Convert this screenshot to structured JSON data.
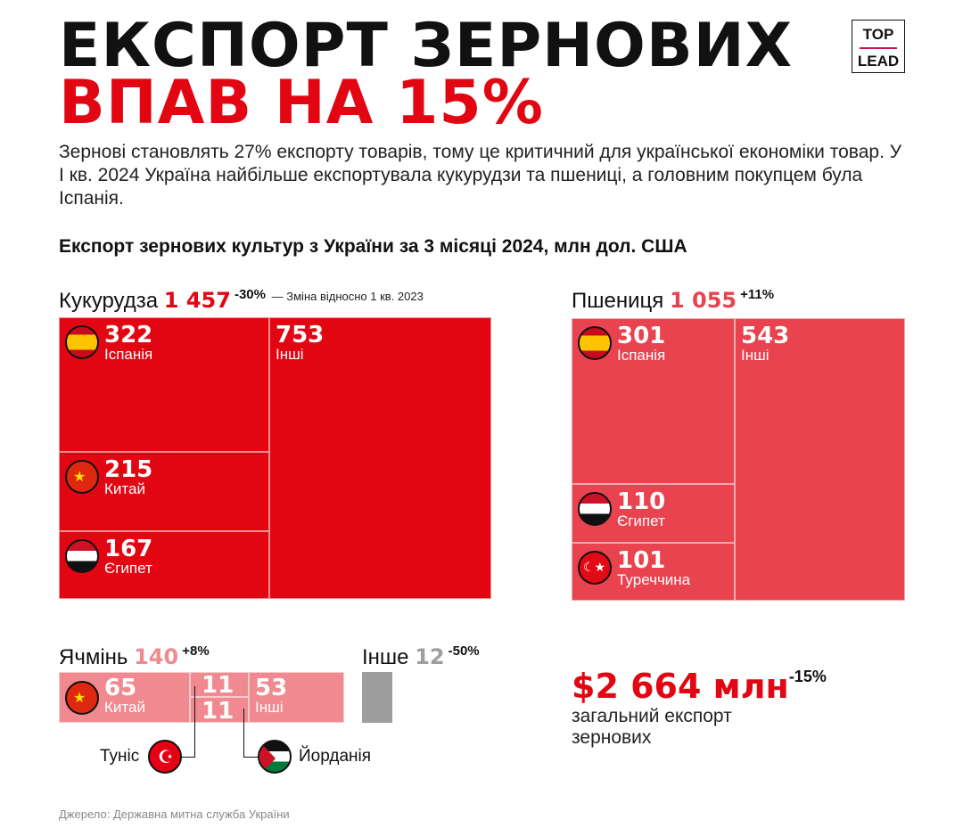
{
  "title": {
    "line1": "ЕКСПОРТ ЗЕРНОВИХ",
    "line2": "ВПАВ НА 15%"
  },
  "logo": {
    "top": "TOP",
    "bottom": "LEAD"
  },
  "intro": "Зернові становлять 27% експорту товарів, тому це критичний для української економіки товар. У І кв. 2024 Україна найбільше експортувала кукурудзи та пшениці, а головним покупцем була Іспанія.",
  "subtitle": "Експорт зернових культур з України за 3 місяці 2024, млн дол. США",
  "chart_data": {
    "type": "treemap",
    "title": "Експорт зернових культур з України за 3 місяці 2024, млн дол. США",
    "note": "— Зміна відносно 1 кв. 2023",
    "colors": {
      "corn": "#e20613",
      "wheat": "#e8434f",
      "barley": "#f08a90",
      "other": "#9e9e9e"
    },
    "groups": [
      {
        "name": "Кукурудза",
        "total": "1 457",
        "change": "-30%",
        "items": [
          {
            "country": "Іспанія",
            "value": "322"
          },
          {
            "country": "Китай",
            "value": "215"
          },
          {
            "country": "Єгипет",
            "value": "167"
          },
          {
            "country": "Інші",
            "value": "753"
          }
        ]
      },
      {
        "name": "Пшениця",
        "total": "1 055",
        "change": "+11%",
        "items": [
          {
            "country": "Іспанія",
            "value": "301"
          },
          {
            "country": "Єгипет",
            "value": "110"
          },
          {
            "country": "Туреччина",
            "value": "101"
          },
          {
            "country": "Інші",
            "value": "543"
          }
        ]
      },
      {
        "name": "Ячмінь",
        "total": "140",
        "change": "+8%",
        "items": [
          {
            "country": "Китай",
            "value": "65"
          },
          {
            "country": "Туніс",
            "value": "11"
          },
          {
            "country": "Йорданія",
            "value": "11"
          },
          {
            "country": "Інші",
            "value": "53"
          }
        ]
      },
      {
        "name": "Інше",
        "total": "12",
        "change": "-50%"
      }
    ]
  },
  "total": {
    "value": "$2 664 млн",
    "change": "-15%",
    "desc1": "загальний експорт",
    "desc2": "зернових"
  },
  "source": "Джерело: Державна митна служба України"
}
